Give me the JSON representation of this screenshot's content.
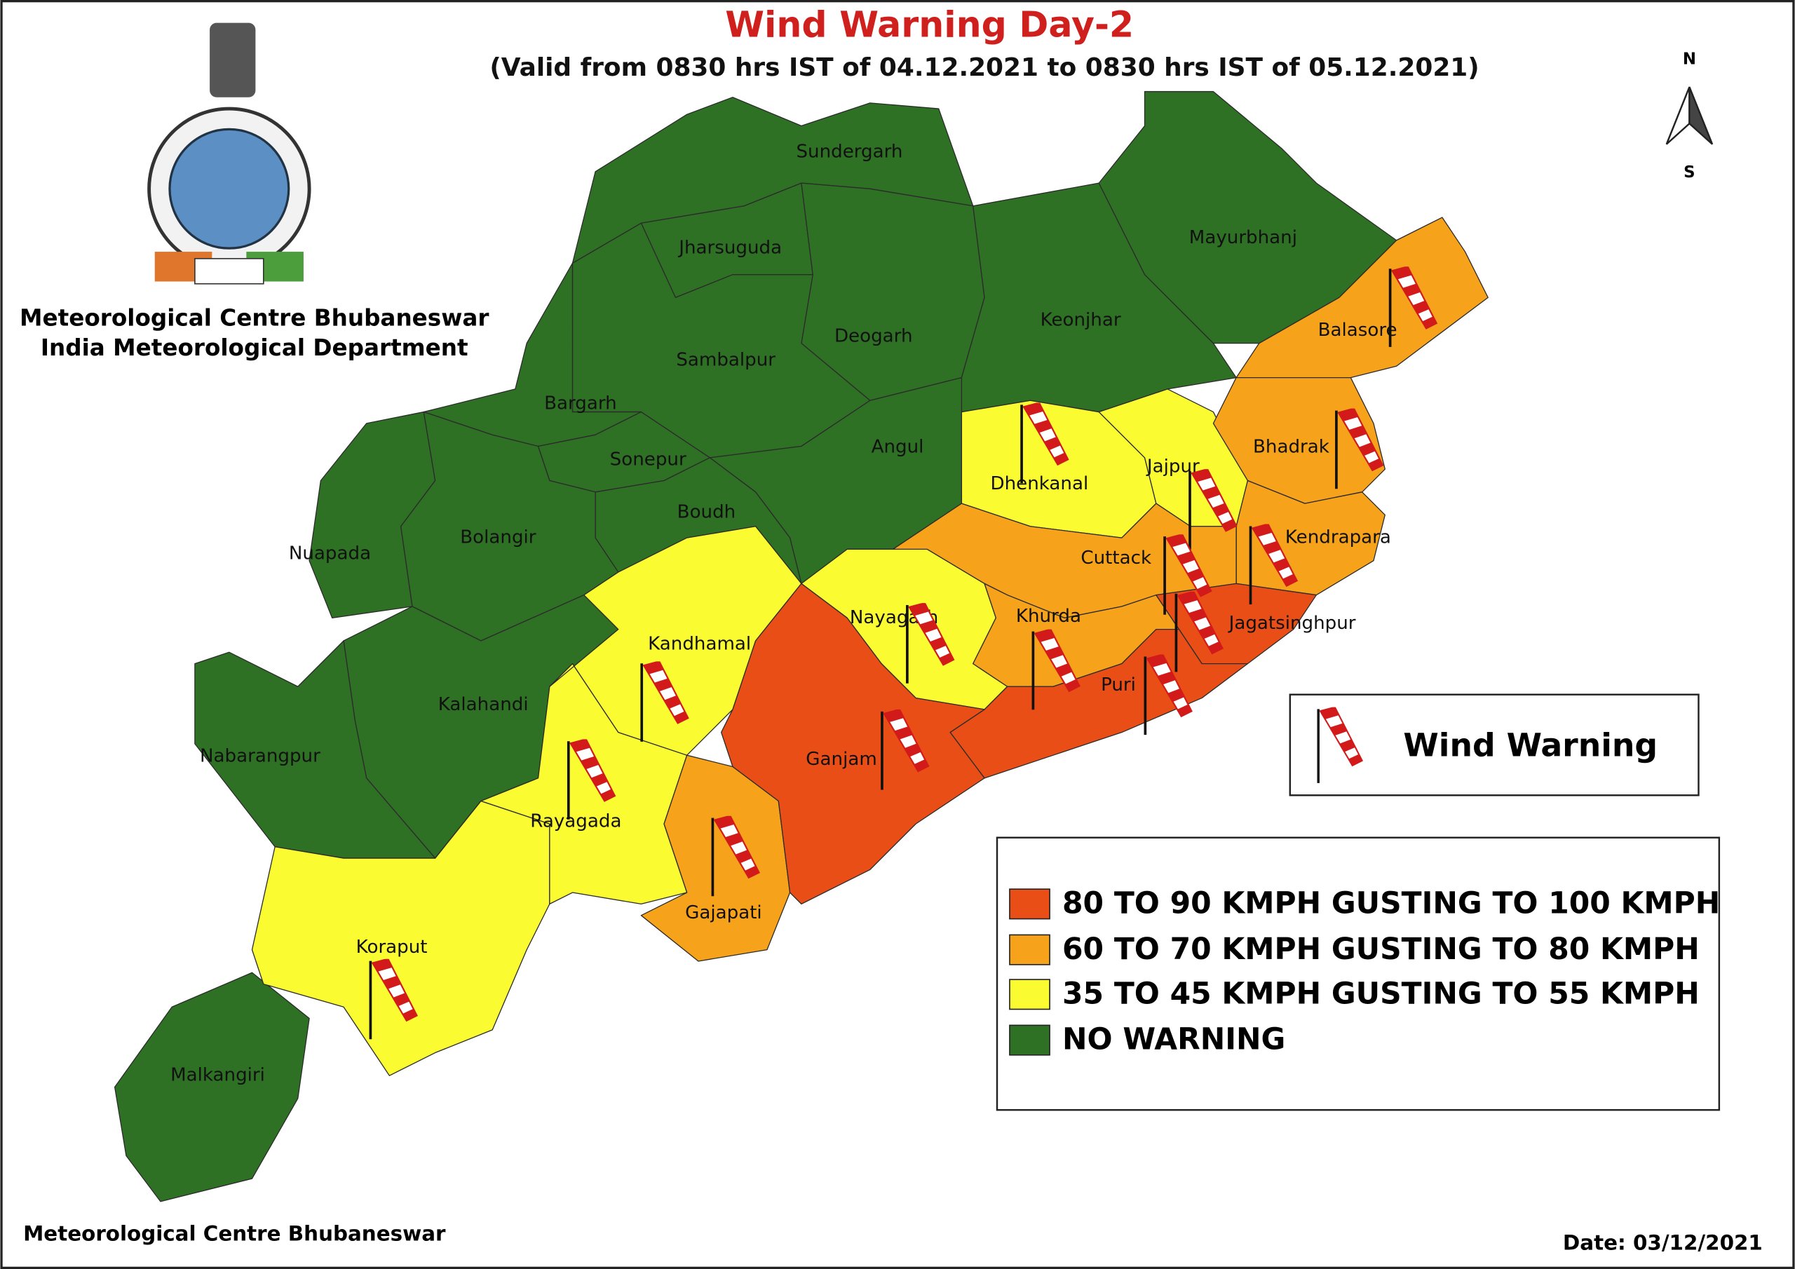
{
  "header": {
    "title": "Wind Warning Day-2",
    "subtitle": "(Valid from  0830 hrs IST of 04.12.2021 to 0830 hrs IST of 05.12.2021)"
  },
  "organization": [
    "Meteorological Centre Bhubaneswar",
    "India Meteorological Department"
  ],
  "compass": {
    "north": "N",
    "south": "S"
  },
  "districts": [
    "Sundergarh",
    "Jharsuguda",
    "Deogarh",
    "Sambalpur",
    "Keonjhar",
    "Mayurbhanj",
    "Bargarh",
    "Sonepur",
    "Angul",
    "Boudh",
    "Nuapada",
    "Bolangir",
    "Kalahandi",
    "Nabarangpur",
    "Malkangiri",
    "Koraput",
    "Rayagada",
    "Kandhamal",
    "Nayagarh",
    "Dhenkanal",
    "Jajpur",
    "Gajapati",
    "Balasore",
    "Bhadrak",
    "Kendrapara",
    "Cuttack",
    "Khurda",
    "Jagatsinghpur",
    "Puri",
    "Ganjam"
  ],
  "icon_legend": "Wind Warning",
  "legend": [
    "80 TO 90 KMPH GUSTING TO 100 KMPH",
    "60 TO 70 KMPH GUSTING TO 80 KMPH",
    "35 TO 45 KMPH GUSTING TO 55 KMPH",
    "NO WARNING"
  ],
  "footer": {
    "left": "Meteorological Centre Bhubaneswar",
    "date": "Date: 03/12/2021"
  }
}
